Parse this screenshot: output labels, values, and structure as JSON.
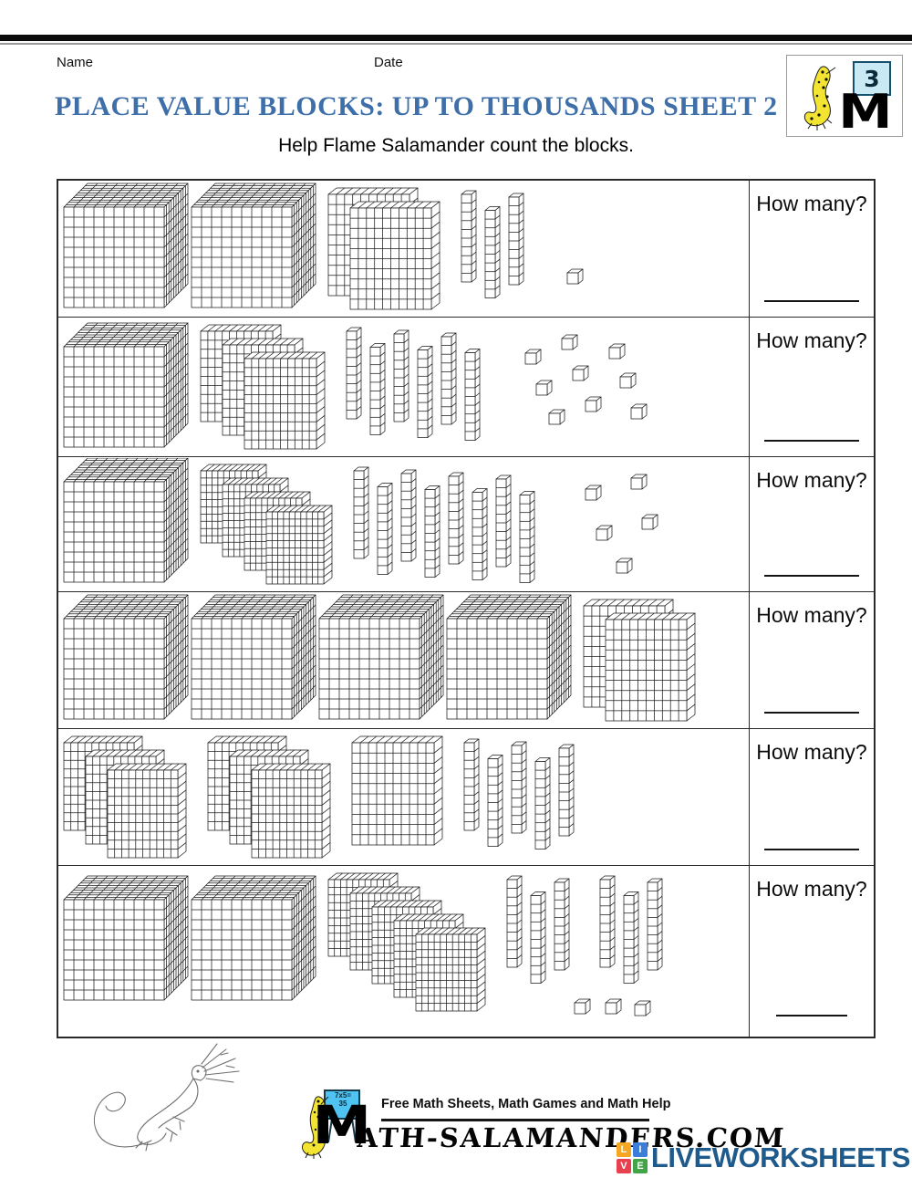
{
  "header": {
    "name_label": "Name",
    "date_label": "Date",
    "title": "PLACE VALUE BLOCKS: UP TO THOUSANDS SHEET 2",
    "title_color": "#3e6fa8",
    "subtitle": "Help Flame Salamander count the blocks.",
    "grade_badge": {
      "number": "3",
      "letter": "M"
    }
  },
  "table": {
    "how_many_label": "How many?",
    "rows": [
      {
        "thousands": 2,
        "hundreds": 2,
        "tens": 3,
        "ones": 1,
        "hundreds_groups": [
          2
        ],
        "tens_groups": [
          3
        ]
      },
      {
        "thousands": 1,
        "hundreds": 3,
        "tens": 6,
        "ones": 9,
        "hundreds_groups": [
          3
        ],
        "tens_groups": [
          6
        ]
      },
      {
        "thousands": 1,
        "hundreds": 4,
        "tens": 8,
        "ones": 5,
        "hundreds_groups": [
          4
        ],
        "tens_groups": [
          8
        ]
      },
      {
        "thousands": 4,
        "hundreds": 2,
        "tens": 0,
        "ones": 0,
        "hundreds_groups": [
          2
        ],
        "tens_groups": []
      },
      {
        "thousands": 0,
        "hundreds": 7,
        "tens": 5,
        "ones": 0,
        "hundreds_groups": [
          3,
          3,
          1
        ],
        "tens_groups": [
          5
        ]
      },
      {
        "thousands": 2,
        "hundreds": 5,
        "tens": 6,
        "ones": 3,
        "hundreds_groups": [
          5
        ],
        "tens_groups": [
          3,
          3
        ]
      }
    ]
  },
  "footer": {
    "tagline": "Free Math Sheets, Math Games and Math Help",
    "brand_m": "M",
    "site_name": "ATH-SALAMANDERS.COM",
    "board_line1": "7x5=",
    "board_line2": "35",
    "liveworksheets": {
      "wordmark": "LIVEWORKSHEETS",
      "color": "#1f5a8d",
      "tiles": [
        {
          "letter": "L",
          "color": "#f5a623"
        },
        {
          "letter": "I",
          "color": "#3b7dd8"
        },
        {
          "letter": "V",
          "color": "#e8404f"
        },
        {
          "letter": "E",
          "color": "#41a447"
        }
      ]
    }
  }
}
